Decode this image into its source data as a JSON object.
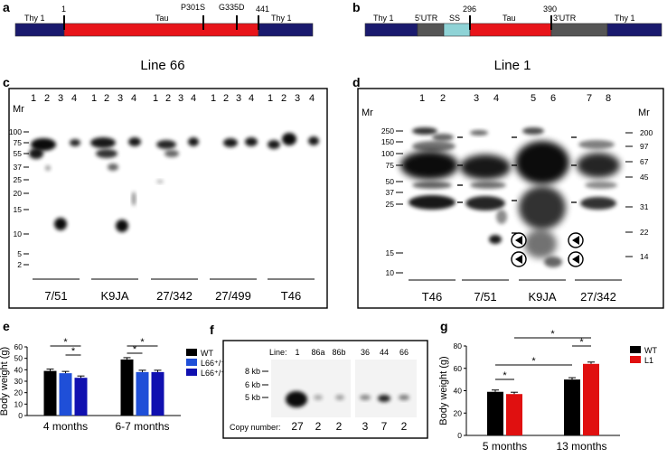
{
  "panels": {
    "a": {
      "label": "a",
      "segments": [
        "Thy 1",
        "Tau",
        "Thy 1"
      ],
      "markers": [
        "1",
        "P301S",
        "G335D",
        "441"
      ],
      "caption": "Line 66"
    },
    "b": {
      "label": "b",
      "segments": [
        "Thy 1",
        "5'UTR",
        "SS",
        "Tau",
        "3'UTR",
        "Thy 1"
      ],
      "markers": [
        "296",
        "390"
      ],
      "caption": "Line 1"
    },
    "c": {
      "label": "c",
      "mr": "Mr",
      "lanes": [
        "1",
        "2",
        "3",
        "4"
      ],
      "mw": [
        "100",
        "75",
        "55",
        "37",
        "25",
        "20",
        "15",
        "10",
        "5",
        "2"
      ],
      "groups": [
        "7/51",
        "K9JA",
        "27/342",
        "27/499",
        "T46"
      ]
    },
    "d": {
      "label": "d",
      "mr": "Mr",
      "lanes": [
        "1",
        "2",
        "3",
        "4",
        "5",
        "6",
        "7",
        "8"
      ],
      "mw_left": [
        "250",
        "150",
        "100",
        "75",
        "50",
        "37",
        "25",
        "15",
        "10"
      ],
      "mw_right": [
        "200",
        "97",
        "67",
        "45",
        "31",
        "22",
        "14"
      ],
      "groups": [
        "T46",
        "7/51",
        "K9JA",
        "27/342"
      ]
    },
    "f": {
      "label": "f",
      "line_label": "Line:",
      "lines": [
        "1",
        "86a",
        "86b",
        "36",
        "44",
        "66"
      ],
      "sizes": [
        "8 kb",
        "6 kb",
        "5 kb"
      ],
      "copy_label": "Copy number:",
      "copies": [
        "27",
        "2",
        "2",
        "3",
        "7",
        "2"
      ]
    }
  },
  "chart_data": [
    {
      "panel": "e",
      "type": "bar",
      "ylabel": "Body weight (g)",
      "ylim": [
        0,
        60
      ],
      "yticks": [
        "0",
        "10",
        "20",
        "30",
        "40",
        "50",
        "60"
      ],
      "categories": [
        "4 months",
        "6-7 months"
      ],
      "series": [
        {
          "name": "WT",
          "color": "#000000",
          "values": [
            39,
            49
          ]
        },
        {
          "name": "L66⁺/⁻",
          "color": "#1f4fd8",
          "values": [
            37,
            38
          ]
        },
        {
          "name": "L66⁺/⁺",
          "color": "#1010b0",
          "values": [
            33,
            38
          ]
        }
      ],
      "significance": [
        "*",
        "*",
        "*",
        "*"
      ]
    },
    {
      "panel": "g",
      "type": "bar",
      "ylabel": "Body weight (g)",
      "ylim": [
        0,
        80
      ],
      "yticks": [
        "0",
        "20",
        "40",
        "60",
        "80"
      ],
      "categories": [
        "5 months",
        "13 months"
      ],
      "series": [
        {
          "name": "WT",
          "color": "#000000",
          "values": [
            39,
            50
          ]
        },
        {
          "name": "L1",
          "color": "#e01010",
          "values": [
            37,
            64
          ]
        }
      ],
      "significance": [
        "*",
        "*",
        "*",
        "*"
      ]
    }
  ],
  "panel_labels": {
    "e": "e",
    "g": "g"
  }
}
